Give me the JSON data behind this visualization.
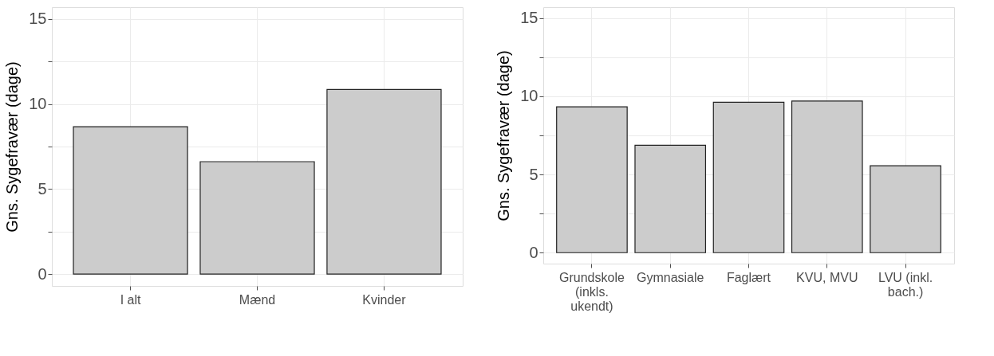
{
  "chart_data": [
    {
      "type": "bar",
      "categories": [
        "I alt",
        "Mænd",
        "Kvinder"
      ],
      "values": [
        8.67,
        6.61,
        10.86
      ],
      "color": "#cccccc",
      "ylabel": "Gns. Sygefravær (dage)",
      "ylim": [
        -0.7,
        15.7
      ],
      "yticks": [
        0,
        {
          "value": 2.5,
          "label": null
        },
        5,
        {
          "value": 7.5,
          "label": null
        },
        10,
        {
          "value": 12.5,
          "label": null
        },
        15
      ],
      "grid": true
    },
    {
      "type": "bar",
      "categories": [
        "Grundskole\n(inkls.\nukendt)",
        "Gymnasiale",
        "Faglært",
        "KVU, MVU",
        "LVU (inkl.\nbach.)"
      ],
      "values": [
        9.33,
        6.87,
        9.62,
        9.7,
        5.56
      ],
      "color": "#cccccc",
      "ylabel": "Gns. Sygefravær (dage)",
      "ylim": [
        -0.7,
        15.7
      ],
      "yticks": [
        0,
        {
          "value": 2.5,
          "label": null
        },
        5,
        {
          "value": 7.5,
          "label": null
        },
        10,
        {
          "value": 12.5,
          "label": null
        },
        15
      ],
      "grid": true
    }
  ]
}
